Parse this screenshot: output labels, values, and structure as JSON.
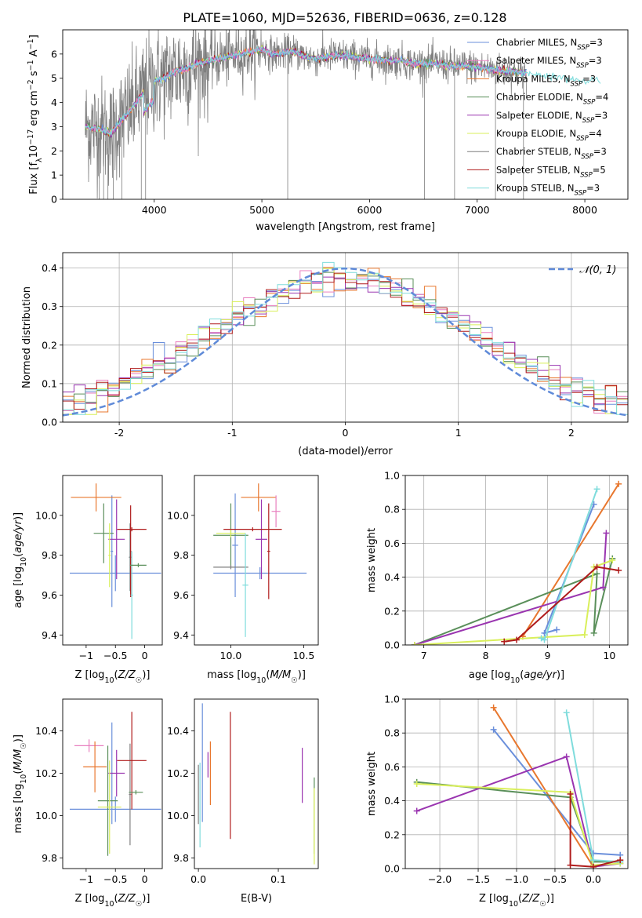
{
  "suptitle": "PLATE=1060, MJD=52636, FIBERID=0636, z=0.128",
  "colors": {
    "chabrier_miles": "#6a8fdb",
    "salpeter_miles": "#e87fbf",
    "kroupa_miles": "#e8772e",
    "chabrier_elodie": "#5a8f5a",
    "salpeter_elodie": "#9a35b0",
    "kroupa_elodie": "#d9ef5a",
    "chabrier_stelib": "#7f7f7f",
    "salpeter_stelib": "#b01c1c",
    "kroupa_stelib": "#7fdcdc",
    "gauss": "#5f8ad8"
  },
  "chart_data": [
    {
      "id": "spectrum",
      "type": "line",
      "xlabel": "wavelength [Angstrom, rest frame]",
      "ylabel": "Flux [f_λ10^-17 erg cm^-2 s^-1 A^-1]",
      "xlim": [
        3150,
        8400
      ],
      "ylim": [
        0,
        7
      ],
      "xticks": [
        4000,
        5000,
        6000,
        7000,
        8000
      ],
      "yticks": [
        0,
        1,
        2,
        3,
        4,
        5,
        6
      ],
      "grid": false,
      "legend_position": "right",
      "legend": [
        {
          "main": "Chabrier MILES, N",
          "sub": "SSP",
          "tail": "=3",
          "color_key": "chabrier_miles"
        },
        {
          "main": "Salpeter MILES, N",
          "sub": "SSP",
          "tail": "=3",
          "color_key": "salpeter_miles"
        },
        {
          "main": "Kroupa MILES, N",
          "sub": "SSP",
          "tail": "=3",
          "color_key": "kroupa_miles"
        },
        {
          "main": "Chabrier ELODIE, N",
          "sub": "SSP",
          "tail": "=4",
          "color_key": "chabrier_elodie"
        },
        {
          "main": "Salpeter ELODIE, N",
          "sub": "SSP",
          "tail": "=3",
          "color_key": "salpeter_elodie"
        },
        {
          "main": "Kroupa ELODIE, N",
          "sub": "SSP",
          "tail": "=4",
          "color_key": "kroupa_elodie"
        },
        {
          "main": "Chabrier STELIB, N",
          "sub": "SSP",
          "tail": "=3",
          "color_key": "chabrier_stelib"
        },
        {
          "main": "Salpeter STELIB, N",
          "sub": "SSP",
          "tail": "=5",
          "color_key": "salpeter_stelib"
        },
        {
          "main": "Kroupa STELIB, N",
          "sub": "SSP",
          "tail": "=3",
          "color_key": "kroupa_stelib"
        }
      ],
      "continuum": {
        "x": [
          3360,
          3500,
          3600,
          3700,
          3800,
          3900,
          4000,
          4100,
          4200,
          4300,
          4400,
          4500,
          4600,
          4700,
          4800,
          4900,
          5000,
          5100,
          5200,
          5300,
          5400,
          5500,
          5600,
          5700,
          5800,
          5900,
          6000,
          6100,
          6200,
          6300,
          6400,
          6500,
          6600,
          6700,
          6800,
          6900,
          7000,
          7100,
          7200,
          7300,
          7400,
          7500,
          7600,
          7700,
          7800,
          7900,
          8000,
          8100,
          8150
        ],
        "y": [
          3.0,
          2.9,
          2.7,
          3.3,
          3.8,
          4.4,
          4.9,
          5.0,
          5.3,
          5.4,
          5.6,
          5.7,
          5.8,
          5.9,
          6.0,
          6.1,
          6.2,
          6.0,
          6.05,
          6.1,
          5.9,
          5.8,
          5.9,
          5.95,
          5.9,
          5.85,
          5.8,
          5.75,
          5.7,
          5.75,
          5.6,
          5.6,
          5.6,
          5.55,
          5.5,
          5.5,
          5.45,
          5.4,
          5.3,
          5.3,
          5.25,
          5.2,
          5.1,
          5.1,
          5.0,
          4.95,
          4.9,
          4.9,
          4.85
        ]
      }
    },
    {
      "id": "residuals",
      "type": "line",
      "xlabel": "(data-model)/error",
      "ylabel": "Normed distribution",
      "xlim": [
        -2.5,
        2.5
      ],
      "ylim": [
        0,
        0.44
      ],
      "xticks": [
        -2,
        -1,
        0,
        1,
        2
      ],
      "yticks": [
        0.0,
        0.1,
        0.2,
        0.3,
        0.4
      ],
      "grid": true,
      "legend_position": "top-right",
      "gauss_label": "𝒩(0, 1)"
    },
    {
      "id": "age_vs_Z",
      "type": "scatter",
      "xlabel": "Z [log10(Z/Z☉)]",
      "ylabel": "age  [log10(age/yr)]",
      "xlim": [
        -1.4,
        0.3
      ],
      "ylim": [
        9.35,
        10.2
      ],
      "xticks": [
        -1,
        -0.5,
        0
      ],
      "xticklabels": [
        "−1",
        "−0.5",
        "0"
      ],
      "yticks": [
        9.4,
        9.6,
        9.8,
        10.0
      ],
      "yticklabels": [
        "9.4",
        "9.6",
        "9.8",
        "10.0"
      ],
      "errorbars": [
        {
          "color_key": "chabrier_miles",
          "x": -0.5,
          "xerr": 0.78,
          "y": 9.71,
          "yerr": 0.09
        },
        {
          "color_key": "chabrier_miles",
          "x": -0.56,
          "xerr": 0.02,
          "y": 9.82,
          "yerr": 0.28
        },
        {
          "color_key": "kroupa_miles",
          "x": -0.83,
          "xerr": 0.43,
          "y": 10.09,
          "yerr": 0.07
        },
        {
          "color_key": "chabrier_elodie",
          "x": -0.7,
          "xerr": 0.17,
          "y": 9.91,
          "yerr": 0.15
        },
        {
          "color_key": "salpeter_elodie",
          "x": -0.48,
          "xerr": 0.14,
          "y": 9.88,
          "yerr": 0.2
        },
        {
          "color_key": "kroupa_elodie",
          "x": -0.6,
          "xerr": 0.02,
          "y": 9.8,
          "yerr": 0.16
        },
        {
          "color_key": "chabrier_stelib",
          "x": -0.25,
          "xerr": 0.02,
          "y": 9.79,
          "yerr": 0.17
        },
        {
          "color_key": "salpeter_stelib",
          "x": -0.22,
          "xerr": 0.25,
          "y": 9.93,
          "yerr": 0.01
        },
        {
          "color_key": "salpeter_stelib",
          "x": -0.24,
          "xerr": 0.01,
          "y": 9.82,
          "yerr": 0.23
        },
        {
          "color_key": "kroupa_stelib",
          "x": -0.22,
          "xerr": 0.02,
          "y": 9.6,
          "yerr": 0.22
        },
        {
          "color_key": "chabrier_elodie",
          "x": -0.11,
          "xerr": 0.14,
          "y": 9.75,
          "yerr": 0.01
        }
      ]
    },
    {
      "id": "age_vs_mass",
      "type": "scatter",
      "xlabel": "mass [log10(M/M☉)]",
      "ylabel": "",
      "xlim": [
        9.75,
        10.6
      ],
      "ylim": [
        9.35,
        10.2
      ],
      "xticks": [
        10.0,
        10.5
      ],
      "xticklabels": [
        "10.0",
        "10.5"
      ],
      "yticks": [
        9.4,
        9.6,
        9.8,
        10.0
      ],
      "yticklabels": [
        "9.4",
        "9.6",
        "9.8",
        "10.0"
      ],
      "errorbars": [
        {
          "color_key": "chabrier_miles",
          "x": 10.2,
          "xerr": 0.32,
          "y": 9.71,
          "yerr": 0.03
        },
        {
          "color_key": "chabrier_miles",
          "x": 10.03,
          "xerr": 0.02,
          "y": 9.85,
          "yerr": 0.26
        },
        {
          "color_key": "kroupa_miles",
          "x": 10.19,
          "xerr": 0.12,
          "y": 10.09,
          "yerr": 0.07
        },
        {
          "color_key": "salpeter_miles",
          "x": 10.31,
          "xerr": 0.03,
          "y": 10.02,
          "yerr": 0.08
        },
        {
          "color_key": "chabrier_elodie",
          "x": 10.0,
          "xerr": 0.12,
          "y": 9.9,
          "yerr": 0.16
        },
        {
          "color_key": "salpeter_elodie",
          "x": 10.21,
          "xerr": 0.04,
          "y": 9.88,
          "yerr": 0.2
        },
        {
          "color_key": "kroupa_elodie",
          "x": 10.0,
          "xerr": 0.1,
          "y": 9.91,
          "yerr": 0.02
        },
        {
          "color_key": "chabrier_stelib",
          "x": 10.0,
          "xerr": 0.12,
          "y": 9.74,
          "yerr": 0.01
        },
        {
          "color_key": "salpeter_stelib",
          "x": 10.15,
          "xerr": 0.2,
          "y": 9.93,
          "yerr": 0.01
        },
        {
          "color_key": "salpeter_stelib",
          "x": 10.26,
          "xerr": 0.01,
          "y": 9.82,
          "yerr": 0.24
        },
        {
          "color_key": "kroupa_stelib",
          "x": 10.1,
          "xerr": 0.02,
          "y": 9.65,
          "yerr": 0.26
        }
      ]
    },
    {
      "id": "weight_vs_age",
      "type": "line",
      "xlabel": "age  [log10(age/yr)]",
      "ylabel": "mass weight",
      "xlim": [
        6.7,
        10.3
      ],
      "ylim": [
        0,
        1
      ],
      "xticks": [
        7,
        8,
        9,
        10
      ],
      "xticklabels": [
        "7",
        "8",
        "9",
        "10"
      ],
      "yticks": [
        0,
        0.2,
        0.4,
        0.6,
        0.8,
        1.0
      ],
      "yticklabels": [
        "0.0",
        "0.2",
        "0.4",
        "0.6",
        "0.8",
        "1.0"
      ],
      "grid": true,
      "series": [
        {
          "color_key": "chabrier_miles",
          "x": [
            9.75,
            8.95,
            9.15
          ],
          "y": [
            0.83,
            0.07,
            0.09
          ]
        },
        {
          "color_key": "kroupa_miles",
          "x": [
            10.15,
            8.6
          ],
          "y": [
            0.95,
            0.05
          ]
        },
        {
          "color_key": "chabrier_elodie",
          "x": [
            6.85,
            9.8,
            9.75,
            10.05
          ],
          "y": [
            0.0,
            0.42,
            0.07,
            0.51
          ]
        },
        {
          "color_key": "salpeter_elodie",
          "x": [
            6.85,
            9.9,
            9.95
          ],
          "y": [
            0.0,
            0.34,
            0.66
          ]
        },
        {
          "color_key": "kroupa_elodie",
          "x": [
            6.85,
            9.6,
            9.75,
            10.05
          ],
          "y": [
            0.0,
            0.06,
            0.46,
            0.5
          ]
        },
        {
          "color_key": "kroupa_stelib",
          "x": [
            9.8,
            8.95,
            8.9
          ],
          "y": [
            0.92,
            0.03,
            0.04
          ]
        },
        {
          "color_key": "salpeter_stelib",
          "x": [
            8.3,
            8.5,
            9.8,
            10.15
          ],
          "y": [
            0.02,
            0.03,
            0.46,
            0.44
          ]
        }
      ]
    },
    {
      "id": "mass_vs_Z",
      "type": "scatter",
      "xlabel": "Z [log10(Z/Z☉)]",
      "ylabel": "mass [log10(M/M☉)]",
      "xlim": [
        -1.4,
        0.3
      ],
      "ylim": [
        9.75,
        10.55
      ],
      "xticks": [
        -1,
        -0.5,
        0
      ],
      "xticklabels": [
        "−1",
        "−0.5",
        "0"
      ],
      "yticks": [
        9.8,
        10.0,
        10.2,
        10.4
      ],
      "yticklabels": [
        "9.8",
        "10.0",
        "10.2",
        "10.4"
      ],
      "errorbars": [
        {
          "color_key": "chabrier_miles",
          "x": -0.5,
          "xerr": 0.78,
          "y": 10.03,
          "yerr": 0.06
        },
        {
          "color_key": "chabrier_miles",
          "x": -0.56,
          "xerr": 0.02,
          "y": 10.2,
          "yerr": 0.24
        },
        {
          "color_key": "salpeter_miles",
          "x": -0.95,
          "xerr": 0.25,
          "y": 10.33,
          "yerr": 0.03
        },
        {
          "color_key": "kroupa_miles",
          "x": -0.85,
          "xerr": 0.2,
          "y": 10.23,
          "yerr": 0.12
        },
        {
          "color_key": "chabrier_elodie",
          "x": -0.63,
          "xerr": 0.17,
          "y": 10.07,
          "yerr": 0.26
        },
        {
          "color_key": "salpeter_elodie",
          "x": -0.48,
          "xerr": 0.14,
          "y": 10.2,
          "yerr": 0.11
        },
        {
          "color_key": "kroupa_elodie",
          "x": -0.6,
          "xerr": 0.2,
          "y": 10.04,
          "yerr": 0.22
        },
        {
          "color_key": "chabrier_stelib",
          "x": -0.25,
          "xerr": 0.02,
          "y": 10.1,
          "yerr": 0.24
        },
        {
          "color_key": "salpeter_stelib",
          "x": -0.22,
          "xerr": 0.25,
          "y": 10.26,
          "yerr": 0.23
        },
        {
          "color_key": "chabrier_elodie",
          "x": -0.15,
          "xerr": 0.12,
          "y": 10.11,
          "yerr": 0.01
        }
      ]
    },
    {
      "id": "mass_vs_ebv",
      "type": "scatter",
      "xlabel": "E(B-V)",
      "ylabel": "",
      "xlim": [
        -0.005,
        0.15
      ],
      "ylim": [
        9.75,
        10.55
      ],
      "xticks": [
        0.0,
        0.1
      ],
      "xticklabels": [
        "0.0",
        "0.1"
      ],
      "yticks": [
        9.8,
        10.0,
        10.2,
        10.4
      ],
      "yticklabels": [
        "9.8",
        "10.0",
        "10.2",
        "10.4"
      ],
      "errorbars": [
        {
          "color_key": "chabrier_stelib",
          "x": 0.0,
          "xerr": 0.0,
          "y": 10.1,
          "yerr": 0.14
        },
        {
          "color_key": "kroupa_stelib",
          "x": 0.002,
          "xerr": 0.0,
          "y": 10.05,
          "yerr": 0.2
        },
        {
          "color_key": "chabrier_miles",
          "x": 0.005,
          "xerr": 0.0,
          "y": 10.25,
          "yerr": 0.28
        },
        {
          "color_key": "salpeter_elodie",
          "x": 0.012,
          "xerr": 0.0,
          "y": 10.24,
          "yerr": 0.06
        },
        {
          "color_key": "kroupa_miles",
          "x": 0.015,
          "xerr": 0.0,
          "y": 10.2,
          "yerr": 0.15
        },
        {
          "color_key": "salpeter_stelib",
          "x": 0.04,
          "xerr": 0.0,
          "y": 10.19,
          "yerr": 0.3
        },
        {
          "color_key": "salpeter_elodie",
          "x": 0.13,
          "xerr": 0.0,
          "y": 10.19,
          "yerr": 0.13
        },
        {
          "color_key": "chabrier_elodie",
          "x": 0.145,
          "xerr": 0.0,
          "y": 10.0,
          "yerr": 0.18
        },
        {
          "color_key": "kroupa_elodie",
          "x": 0.145,
          "xerr": 0.0,
          "y": 9.95,
          "yerr": 0.18
        }
      ]
    },
    {
      "id": "weight_vs_Z",
      "type": "line",
      "xlabel": "Z [log10(Z/Z☉)]",
      "ylabel": "mass weight",
      "xlim": [
        -2.45,
        0.45
      ],
      "ylim": [
        0,
        1
      ],
      "xticks": [
        -2.0,
        -1.5,
        -1.0,
        -0.5,
        0.0
      ],
      "xticklabels": [
        "−2.0",
        "−1.5",
        "−1.0",
        "−0.5",
        "0.0"
      ],
      "yticks": [
        0,
        0.2,
        0.4,
        0.6,
        0.8,
        1.0
      ],
      "yticklabels": [
        "0.0",
        "0.2",
        "0.4",
        "0.6",
        "0.8",
        "1.0"
      ],
      "grid": true,
      "series": [
        {
          "color_key": "chabrier_miles",
          "x": [
            -1.3,
            0.0,
            0.35
          ],
          "y": [
            0.82,
            0.09,
            0.08
          ]
        },
        {
          "color_key": "kroupa_miles",
          "x": [
            -1.3,
            0.0,
            0.35
          ],
          "y": [
            0.95,
            0.01,
            0.05
          ]
        },
        {
          "color_key": "chabrier_elodie",
          "x": [
            -2.3,
            -0.3,
            0.0,
            0.35
          ],
          "y": [
            0.51,
            0.42,
            0.04,
            0.04
          ]
        },
        {
          "color_key": "salpeter_elodie",
          "x": [
            -2.3,
            -0.35,
            0.0,
            0.35
          ],
          "y": [
            0.34,
            0.66,
            0.01,
            0.03
          ]
        },
        {
          "color_key": "kroupa_elodie",
          "x": [
            -2.3,
            -0.3,
            0.0,
            0.35
          ],
          "y": [
            0.5,
            0.45,
            0.02,
            0.03
          ]
        },
        {
          "color_key": "kroupa_stelib",
          "x": [
            -0.35,
            0.0,
            0.35
          ],
          "y": [
            0.92,
            0.05,
            0.04
          ]
        },
        {
          "color_key": "salpeter_stelib",
          "x": [
            -0.3,
            -0.3,
            0.0,
            0.35
          ],
          "y": [
            0.44,
            0.02,
            0.01,
            0.05
          ]
        }
      ]
    }
  ]
}
